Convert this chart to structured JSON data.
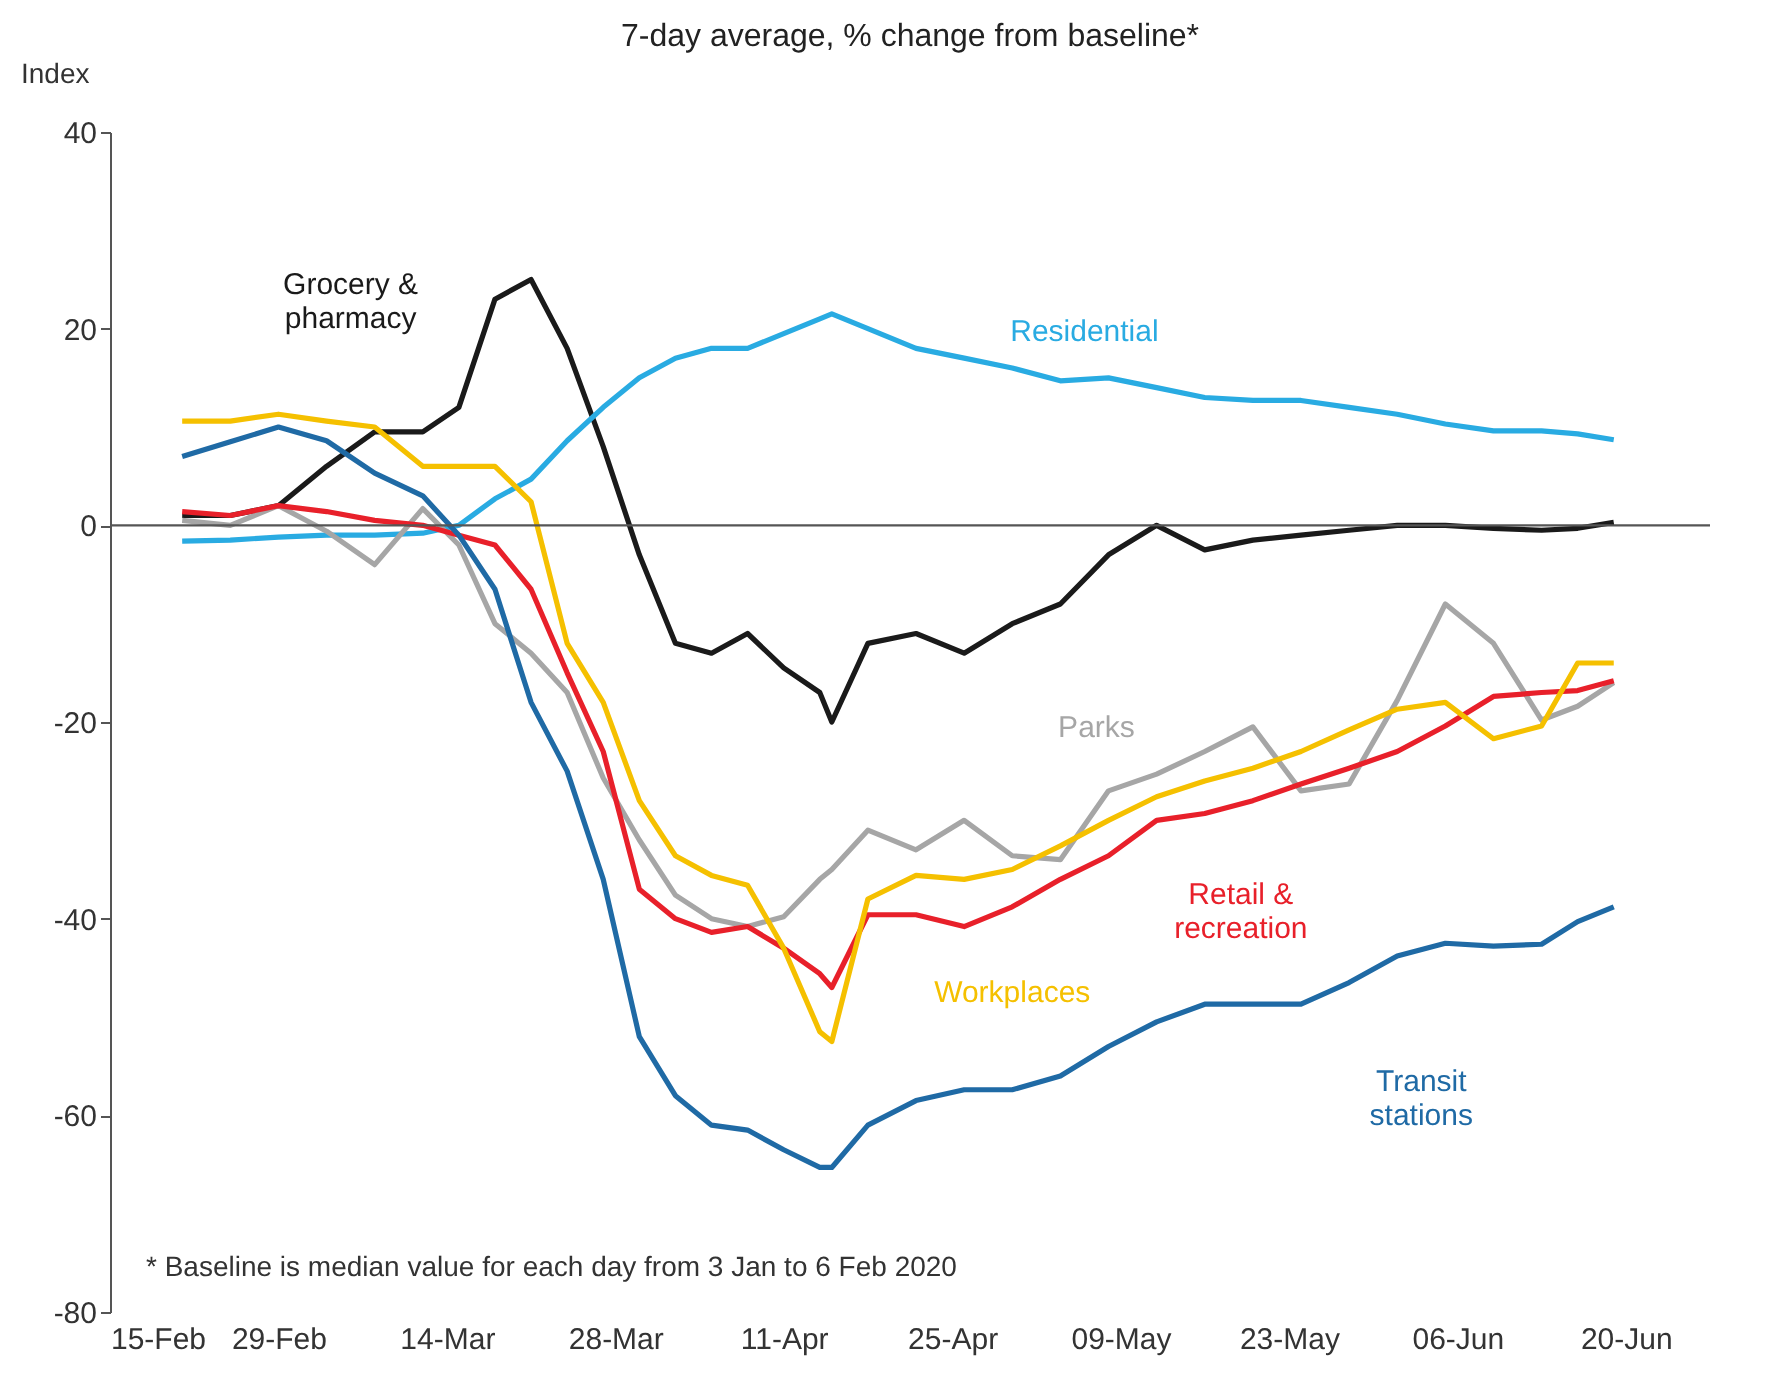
{
  "chart_data": {
    "type": "line",
    "title": "7-day average, % change from baseline*",
    "ylabel": "Index",
    "x": [
      "2020-02-21",
      "2020-02-25",
      "2020-02-29",
      "2020-03-04",
      "2020-03-08",
      "2020-03-12",
      "2020-03-15",
      "2020-03-18",
      "2020-03-21",
      "2020-03-24",
      "2020-03-27",
      "2020-03-30",
      "2020-04-02",
      "2020-04-05",
      "2020-04-08",
      "2020-04-11",
      "2020-04-14",
      "2020-04-15",
      "2020-04-18",
      "2020-04-22",
      "2020-04-26",
      "2020-04-30",
      "2020-05-04",
      "2020-05-08",
      "2020-05-12",
      "2020-05-16",
      "2020-05-20",
      "2020-05-24",
      "2020-05-28",
      "2020-06-01",
      "2020-06-05",
      "2020-06-09",
      "2020-06-13",
      "2020-06-16",
      "2020-06-19"
    ],
    "series": [
      {
        "name": "Grocery &\npharmacy",
        "color": "#1a1a1a",
        "values": [
          1,
          1,
          2,
          6,
          9.5,
          9.5,
          12,
          23,
          25,
          18,
          8,
          -3,
          -12,
          -13,
          -11,
          -14.5,
          -17,
          -20,
          -12,
          -11,
          -13,
          -10,
          -8,
          -3,
          0,
          -2.5,
          -1.5,
          -1,
          -0.5,
          0,
          0,
          -0.3,
          -0.5,
          -0.3,
          0.3
        ]
      },
      {
        "name": "Residential",
        "color": "#29abe2",
        "values": [
          -1.6,
          -1.5,
          -1.2,
          -1,
          -1,
          -0.8,
          0,
          2.7,
          4.7,
          8.6,
          12,
          15,
          17,
          18,
          18,
          19.5,
          21,
          21.5,
          20,
          18,
          17,
          16,
          14.7,
          15,
          14,
          13,
          12.7,
          12.7,
          12,
          11.3,
          10.3,
          9.6,
          9.6,
          9.3,
          8.7
        ]
      },
      {
        "name": "Parks",
        "color": "#a6a6a6",
        "values": [
          0.5,
          0,
          2,
          -0.6,
          -4,
          1.7,
          -2,
          -10,
          -13,
          -17,
          -25.7,
          -32,
          -37.6,
          -40,
          -40.8,
          -39.8,
          -36,
          -35,
          -31,
          -33,
          -30,
          -33.6,
          -34,
          -27,
          -25.3,
          -23,
          -20.5,
          -27,
          -26.3,
          -17.8,
          -8,
          -12,
          -19.8,
          -18.4,
          -16
        ]
      },
      {
        "name": "Retail &\nrecreation",
        "color": "#e8202a",
        "values": [
          1.4,
          1,
          2,
          1.4,
          0.5,
          0,
          -1,
          -2,
          -6.5,
          -15,
          -23,
          -37,
          -40,
          -41.4,
          -40.8,
          -43,
          -45.6,
          -47,
          -39.6,
          -39.6,
          -40.8,
          -38.8,
          -36,
          -33.6,
          -30,
          -29.3,
          -28,
          -26.3,
          -24.7,
          -23,
          -20.4,
          -17.4,
          -17,
          -16.8,
          -15.8
        ]
      },
      {
        "name": "Workplaces",
        "color": "#f5c000",
        "values": [
          10.6,
          10.6,
          11.3,
          10.6,
          10,
          6,
          6,
          6,
          2.4,
          -12,
          -18,
          -28,
          -33.6,
          -35.6,
          -36.6,
          -43,
          -51.5,
          -52.5,
          -38,
          -35.6,
          -36,
          -35,
          -32.6,
          -30,
          -27.6,
          -26,
          -24.7,
          -23,
          -20.8,
          -18.7,
          -18,
          -21.7,
          -20.4,
          -14,
          -14
        ]
      },
      {
        "name": "Transit\nstations",
        "color": "#1f6aa5",
        "values": [
          7,
          8.5,
          10,
          8.6,
          5.3,
          3,
          -1,
          -6.5,
          -18,
          -25,
          -36,
          -52,
          -58,
          -61,
          -61.5,
          -63.5,
          -65.3,
          -65.3,
          -61,
          -58.5,
          -57.4,
          -57.4,
          -56,
          -53,
          -50.5,
          -48.7,
          -48.7,
          -48.7,
          -46.5,
          -43.8,
          -42.5,
          -42.8,
          -42.6,
          -40.3,
          -38.8
        ]
      }
    ],
    "xlim": [
      "2020-02-15",
      "2020-06-27"
    ],
    "xticks": [
      {
        "value": "2020-02-15",
        "label": "15-Feb"
      },
      {
        "value": "2020-02-29",
        "label": "29-Feb"
      },
      {
        "value": "2020-03-14",
        "label": "14-Mar"
      },
      {
        "value": "2020-03-28",
        "label": "28-Mar"
      },
      {
        "value": "2020-04-11",
        "label": "11-Apr"
      },
      {
        "value": "2020-04-25",
        "label": "25-Apr"
      },
      {
        "value": "2020-05-09",
        "label": "09-May"
      },
      {
        "value": "2020-05-23",
        "label": "23-May"
      },
      {
        "value": "2020-06-06",
        "label": "06-Jun"
      },
      {
        "value": "2020-06-20",
        "label": "20-Jun"
      }
    ],
    "ylim": [
      -80,
      40
    ],
    "yticks": [
      -80,
      -60,
      -40,
      -20,
      0,
      20,
      40
    ],
    "ref_lines": [
      {
        "axis": "y",
        "value": 0
      }
    ],
    "annotations": [
      "* Baseline is median value for each day from 3 Jan to 6 Feb 2020"
    ]
  }
}
